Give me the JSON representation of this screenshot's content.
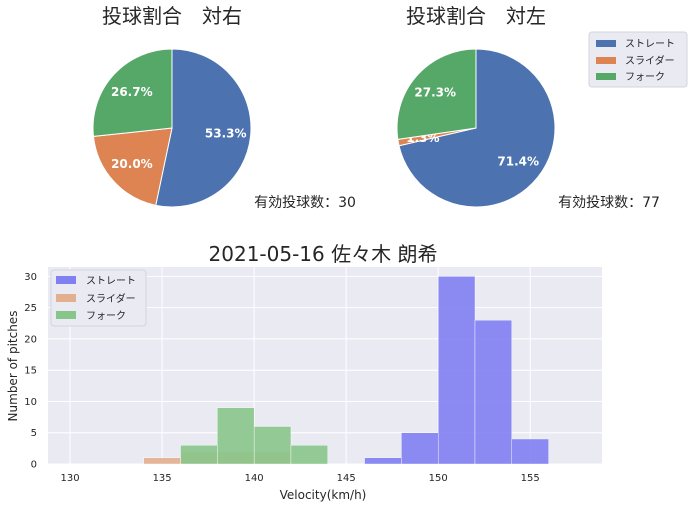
{
  "figure": {
    "pie_left_title": "投球割合　対右",
    "pie_right_title": "投球割合　対左",
    "pie_left_count": "有効投球数：30",
    "pie_right_count": "有効投球数：77",
    "hist_title": "2021-05-16 佐々木 朗希"
  },
  "colors": {
    "straight_pie": "#4c72b0",
    "slider_pie": "#dd8452",
    "fork_pie": "#55a868",
    "straight_hist": "#8080f2",
    "slider_hist": "#e4af8f",
    "fork_hist": "#88c58a",
    "axes_bg": "#eaeaf2",
    "grid": "#ffffff"
  },
  "chart_data": [
    {
      "type": "pie",
      "title": "投球割合　対右",
      "labels": [
        "ストレート",
        "スライダー",
        "フォーク"
      ],
      "values": [
        53.3,
        20.0,
        26.7
      ],
      "value_labels": [
        "53.3%",
        "20.0%",
        "26.7%"
      ],
      "annotation": "有効投球数：30"
    },
    {
      "type": "pie",
      "title": "投球割合　対左",
      "labels": [
        "ストレート",
        "スライダー",
        "フォーク"
      ],
      "values": [
        71.4,
        1.3,
        27.3
      ],
      "value_labels": [
        "71.4%",
        "1.3%",
        "27.3%"
      ],
      "annotation": "有効投球数：77",
      "legend": {
        "position": "right-outside",
        "entries": [
          "ストレート",
          "スライダー",
          "フォーク"
        ]
      }
    },
    {
      "type": "bar",
      "subtype": "histogram",
      "title": "2021-05-16 佐々木 朗希",
      "xlabel": "Velocity(km/h)",
      "ylabel": "Number of pitches",
      "xlim": [
        128.8,
        158.9
      ],
      "ylim": [
        0,
        31.5
      ],
      "xticks": [
        130,
        135,
        140,
        145,
        150,
        155
      ],
      "yticks": [
        0,
        5,
        10,
        15,
        20,
        25,
        30
      ],
      "grid": true,
      "legend": {
        "position": "upper-left",
        "entries": [
          "ストレート",
          "スライダー",
          "フォーク"
        ]
      },
      "series": [
        {
          "name": "ストレート",
          "bins": [
            [
              146,
              148
            ],
            [
              148,
              150
            ],
            [
              150,
              152
            ],
            [
              152,
              154
            ],
            [
              154,
              156
            ]
          ],
          "counts": [
            1,
            5,
            30,
            23,
            4
          ]
        },
        {
          "name": "スライダー",
          "bins": [
            [
              134,
              136
            ],
            [
              136,
              138
            ],
            [
              138,
              140
            ],
            [
              140,
              142
            ]
          ],
          "counts": [
            1,
            2,
            2,
            2
          ]
        },
        {
          "name": "フォーク",
          "bins": [
            [
              136,
              138
            ],
            [
              138,
              140
            ],
            [
              140,
              142
            ],
            [
              142,
              144
            ]
          ],
          "counts": [
            3,
            9,
            6,
            3
          ]
        }
      ]
    }
  ]
}
